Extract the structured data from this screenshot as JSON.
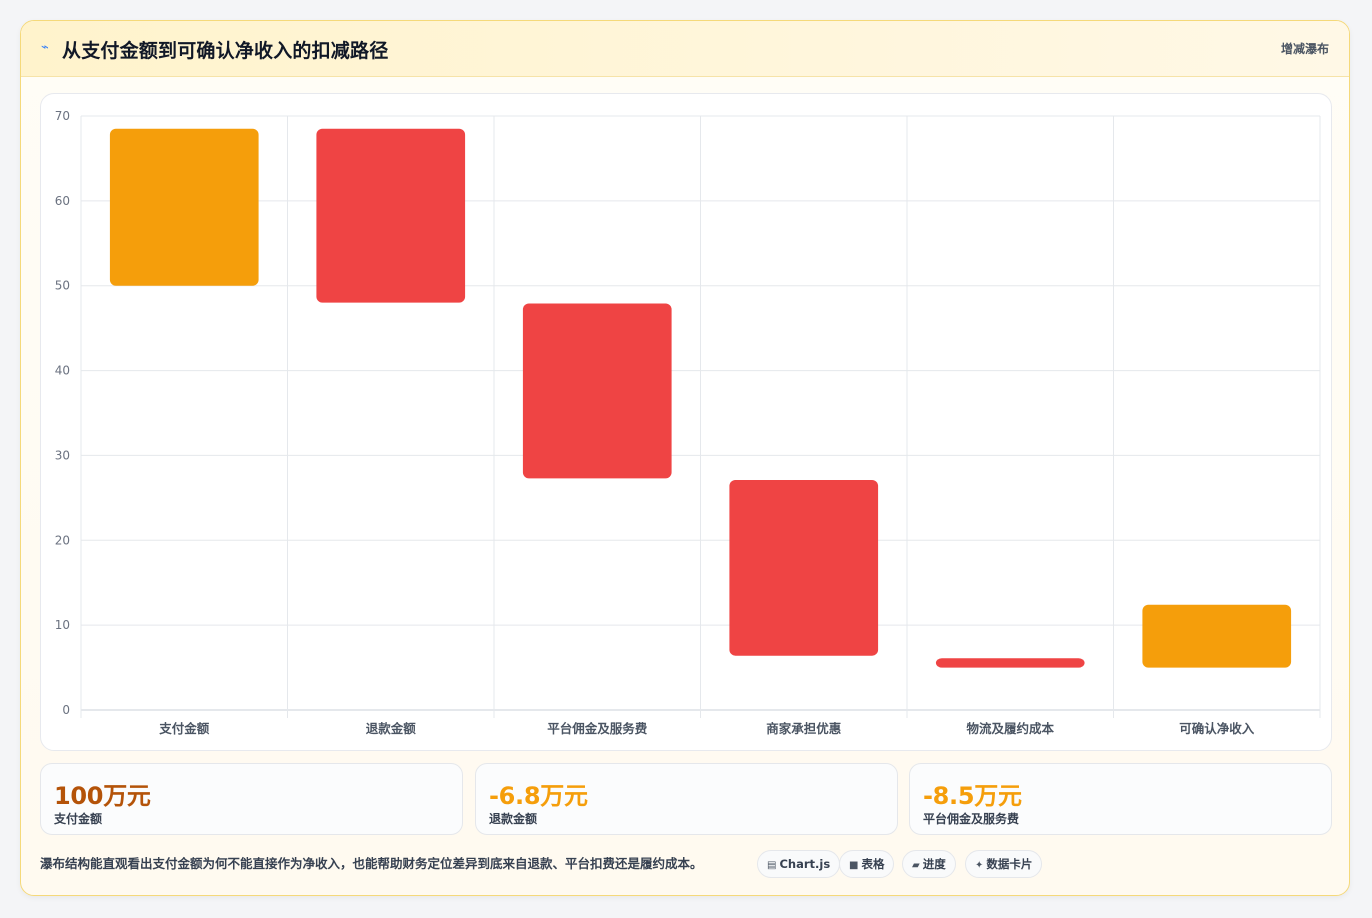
{
  "header": {
    "icon": "chart-trend-icon",
    "title": "从支付金额到可确认净收入的扣减路径",
    "tag": "增减瀑布"
  },
  "colors": {
    "positive": "#f59e0b",
    "negative": "#ef4444",
    "kpi_primary": "#b45309",
    "kpi_secondary": "#f59e0b"
  },
  "chart_data": {
    "type": "bar",
    "subtype": "floating-waterfall",
    "categories": [
      "支付金额",
      "退款金额",
      "平台佣金及服务费",
      "商家承担优惠",
      "物流及履约成本",
      "可确认净收入"
    ],
    "ranges": [
      [
        50,
        68.5
      ],
      [
        48,
        68.5
      ],
      [
        27.3,
        47.9
      ],
      [
        6.4,
        27.1
      ],
      [
        5,
        6.1
      ],
      [
        5,
        12.4
      ]
    ],
    "kinds": [
      "positive",
      "negative",
      "negative",
      "negative",
      "negative",
      "positive"
    ],
    "ylim": [
      0,
      70
    ],
    "yticks": [
      0,
      10,
      20,
      30,
      40,
      50,
      60,
      70
    ],
    "grid": true,
    "legend": "none"
  },
  "kpis": [
    {
      "value": "100万元",
      "label": "支付金额"
    },
    {
      "value": "-6.8万元",
      "label": "退款金额"
    },
    {
      "value": "-8.5万元",
      "label": "平台佣金及服务费"
    }
  ],
  "note": "瀑布结构能直观看出支付金额为何不能直接作为净收入，也能帮助财务定位差异到底来自退款、平台扣费还是履约成本。",
  "chips": [
    {
      "icon": "table-icon",
      "glyph": "▤",
      "label": "Chart.js"
    },
    {
      "icon": "grid-icon",
      "glyph": "■",
      "label": "表格"
    },
    {
      "icon": "progress-icon",
      "glyph": "▰",
      "label": "进度"
    },
    {
      "icon": "sparkle-icon",
      "glyph": "✦",
      "label": "数据卡片"
    }
  ]
}
